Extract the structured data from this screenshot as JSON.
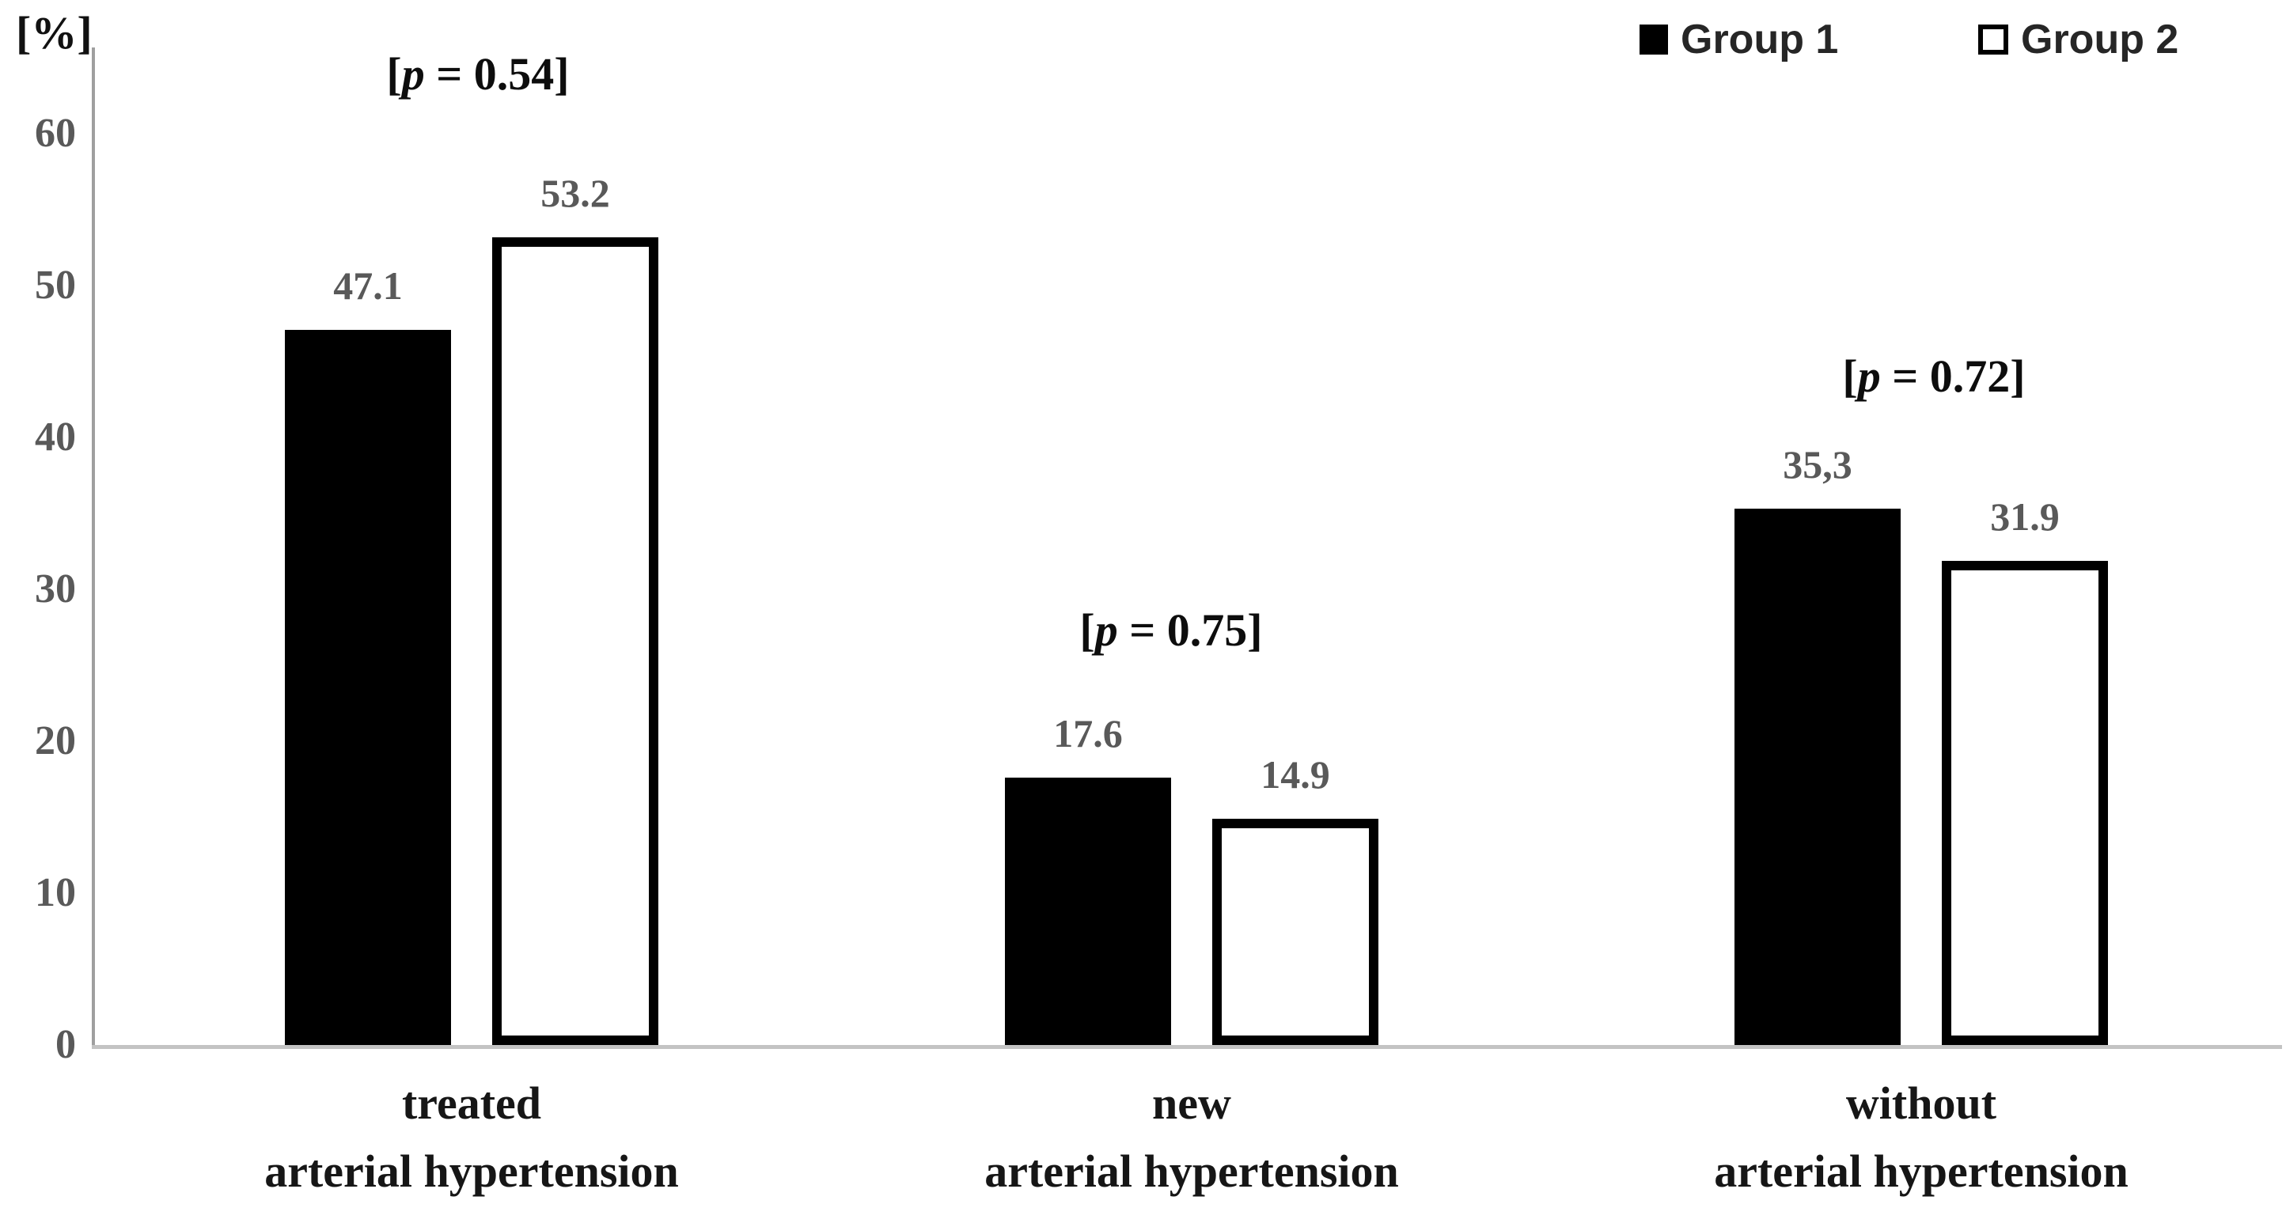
{
  "chart_data": {
    "type": "bar",
    "title": "",
    "ylabel": "[%]",
    "ylim": [
      0,
      60
    ],
    "yticks": [
      0,
      10,
      20,
      30,
      40,
      50,
      60
    ],
    "grid": false,
    "legend_position": "top-right",
    "categories": [
      {
        "line1": "treated",
        "line2": "arterial hypertension"
      },
      {
        "line1": "new",
        "line2": "arterial hypertension"
      },
      {
        "line1": "without",
        "line2": "arterial hypertension"
      }
    ],
    "series": [
      {
        "name": "Group 1",
        "style": "solid-black",
        "color": "#000000",
        "values": [
          47.1,
          17.6,
          35.3
        ],
        "value_labels": [
          "47.1",
          "17.6",
          "35,3"
        ]
      },
      {
        "name": "Group 2",
        "style": "white-outlined",
        "color": "#ffffff",
        "border_color": "#000000",
        "values": [
          53.2,
          14.9,
          31.9
        ],
        "value_labels": [
          "53.2",
          "14.9",
          "31.9"
        ]
      }
    ],
    "p_values": [
      {
        "pre": "[",
        "symbol": "p",
        "rest": " = 0.54]"
      },
      {
        "pre": "[",
        "symbol": "p",
        "rest": " = 0.75]"
      },
      {
        "pre": "[",
        "symbol": "p",
        "rest": " = 0.72]"
      }
    ],
    "colors": {
      "value_label": "#595959",
      "tick_label": "#595959",
      "y_axis_line": "#9f9f9f",
      "x_axis_line": "#c3c3c3",
      "annotation_text": "#0d0d0d"
    }
  }
}
